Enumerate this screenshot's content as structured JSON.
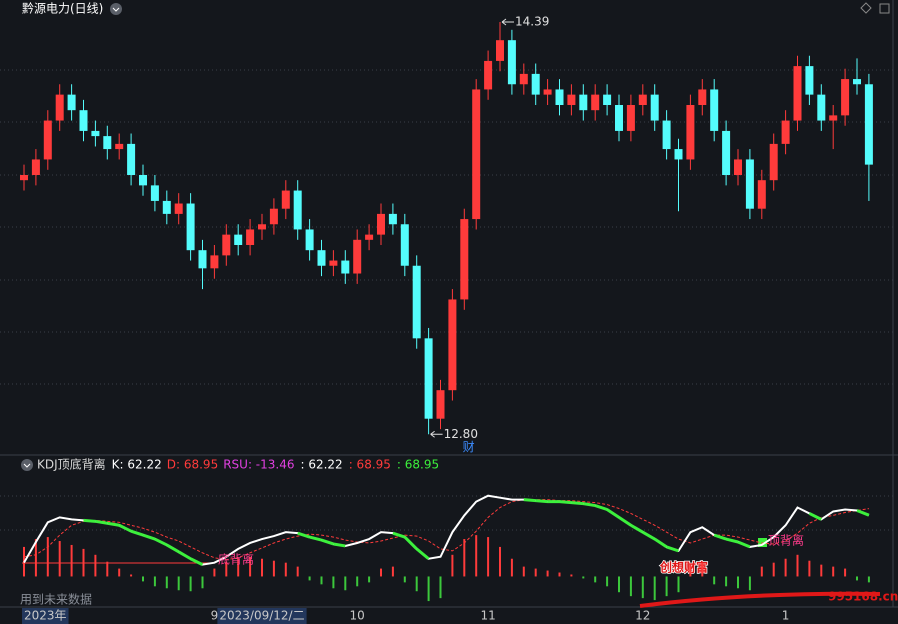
{
  "chart_data": [
    {
      "type": "candlestick",
      "title": "黔源电力(日线)",
      "categories": [
        "2023年",
        null,
        null,
        null,
        null,
        null,
        null,
        null,
        null,
        null,
        null,
        null,
        null,
        null,
        null,
        null,
        "9",
        null,
        null,
        null,
        "2023/09/12/二",
        null,
        null,
        null,
        null,
        null,
        null,
        null,
        "10",
        null,
        null,
        null,
        null,
        null,
        null,
        null,
        null,
        null,
        null,
        "11",
        null,
        null,
        null,
        null,
        null,
        null,
        null,
        null,
        null,
        null,
        null,
        null,
        "12",
        null,
        null,
        null,
        null,
        null,
        null,
        null,
        null,
        null,
        null,
        null,
        "1",
        null,
        null,
        null,
        null,
        null,
        null,
        null
      ],
      "open": [
        13.78,
        13.8,
        13.86,
        14.01,
        14.11,
        14.05,
        13.97,
        13.95,
        13.9,
        13.92,
        13.8,
        13.76,
        13.7,
        13.65,
        13.69,
        13.51,
        13.44,
        13.49,
        13.57,
        13.53,
        13.59,
        13.61,
        13.67,
        13.74,
        13.59,
        13.51,
        13.45,
        13.47,
        13.42,
        13.55,
        13.57,
        13.65,
        13.61,
        13.45,
        13.17,
        12.86,
        12.97,
        13.32,
        13.63,
        14.13,
        14.24,
        14.32,
        14.15,
        14.19,
        14.11,
        14.13,
        14.07,
        14.11,
        14.05,
        14.11,
        14.07,
        13.97,
        14.07,
        14.11,
        14.01,
        13.9,
        13.86,
        14.07,
        14.13,
        13.97,
        13.8,
        13.86,
        13.67,
        13.78,
        13.92,
        14.01,
        14.22,
        14.11,
        14.01,
        14.03,
        14.17,
        14.15
      ],
      "high": [
        13.84,
        13.9,
        14.05,
        14.15,
        14.15,
        14.09,
        14.01,
        13.99,
        13.96,
        13.96,
        13.84,
        13.8,
        13.74,
        13.73,
        13.73,
        13.55,
        13.53,
        13.61,
        13.61,
        13.63,
        13.65,
        13.71,
        13.78,
        13.78,
        13.63,
        13.55,
        13.51,
        13.51,
        13.59,
        13.61,
        13.69,
        13.69,
        13.65,
        13.49,
        13.21,
        13.01,
        13.36,
        13.67,
        14.17,
        14.28,
        14.39,
        14.36,
        14.23,
        14.23,
        14.17,
        14.17,
        14.15,
        14.15,
        14.15,
        14.15,
        14.11,
        14.11,
        14.15,
        14.15,
        14.05,
        13.94,
        14.11,
        14.17,
        14.17,
        14.01,
        13.9,
        13.9,
        13.82,
        13.96,
        14.05,
        14.26,
        14.26,
        14.15,
        14.07,
        14.21,
        14.25,
        14.19
      ],
      "low": [
        13.74,
        13.76,
        13.82,
        13.97,
        14.01,
        13.93,
        13.91,
        13.86,
        13.86,
        13.76,
        13.72,
        13.66,
        13.61,
        13.61,
        13.47,
        13.36,
        13.4,
        13.45,
        13.49,
        13.49,
        13.55,
        13.57,
        13.63,
        13.55,
        13.47,
        13.41,
        13.41,
        13.38,
        13.38,
        13.51,
        13.53,
        13.57,
        13.41,
        13.13,
        12.8,
        12.82,
        12.93,
        13.28,
        13.59,
        14.09,
        14.2,
        14.11,
        14.11,
        14.07,
        14.07,
        14.03,
        14.03,
        14.01,
        14.01,
        14.03,
        13.93,
        13.93,
        14.03,
        13.97,
        13.86,
        13.66,
        13.82,
        14.03,
        13.93,
        13.76,
        13.76,
        13.63,
        13.63,
        13.74,
        13.88,
        13.97,
        14.07,
        13.97,
        13.9,
        13.99,
        14.11,
        13.7
      ],
      "close": [
        13.8,
        13.86,
        14.01,
        14.11,
        14.05,
        13.97,
        13.95,
        13.9,
        13.92,
        13.8,
        13.76,
        13.7,
        13.65,
        13.69,
        13.51,
        13.44,
        13.49,
        13.57,
        13.53,
        13.59,
        13.61,
        13.67,
        13.74,
        13.59,
        13.51,
        13.45,
        13.47,
        13.42,
        13.55,
        13.57,
        13.65,
        13.61,
        13.45,
        13.17,
        12.86,
        12.97,
        13.32,
        13.63,
        14.13,
        14.24,
        14.32,
        14.15,
        14.19,
        14.11,
        14.13,
        14.07,
        14.11,
        14.05,
        14.11,
        14.07,
        13.97,
        14.07,
        14.11,
        14.01,
        13.9,
        13.86,
        14.07,
        14.13,
        13.97,
        13.8,
        13.86,
        13.67,
        13.78,
        13.92,
        14.01,
        14.22,
        14.11,
        14.01,
        14.03,
        14.17,
        14.15,
        13.84
      ],
      "up_color": "#ff3b3b",
      "down_color": "#54fcfc",
      "ylim": [
        12.72,
        14.475
      ],
      "annotations": [
        {
          "value": 14.39,
          "label": "14.39"
        },
        {
          "value": 12.8,
          "label": "12.80"
        }
      ],
      "marker": "财"
    },
    {
      "type": "kdj",
      "header": [
        {
          "text": "KDJ顶底背离",
          "color": "#d8d8d8"
        },
        {
          "text": "K: 62.22",
          "color": "#ffffff"
        },
        {
          "text": "D: 68.95",
          "color": "#ff3b3b"
        },
        {
          "text": "RSU: -13.46",
          "color": "#e040e0"
        },
        {
          "text": ": 62.22",
          "color": "#ffffff"
        },
        {
          "text": ": 68.95",
          "color": "#ff3b3b"
        },
        {
          "text": ": 68.95",
          "color": "#3cf03c"
        }
      ],
      "series": [
        {
          "color": "#ffffff",
          "values": [
            14,
            35,
            55,
            60,
            58,
            57,
            56,
            54,
            52,
            46,
            42,
            38,
            32,
            25,
            18,
            12,
            14,
            20,
            28,
            34,
            38,
            41,
            45,
            44,
            40,
            37,
            33,
            31,
            34,
            38,
            45,
            44,
            40,
            28,
            18,
            20,
            45,
            62,
            76,
            82,
            80,
            78,
            78,
            77,
            76,
            76,
            75,
            74,
            72,
            68,
            60,
            52,
            45,
            38,
            30,
            26,
            45,
            50,
            42,
            38,
            35,
            30,
            32,
            40,
            52,
            70,
            64,
            58,
            66,
            68,
            67,
            62.22
          ]
        },
        {
          "color": "#ff3b3b",
          "values": [
            20,
            22,
            30,
            42,
            52,
            56,
            57,
            56,
            55,
            52,
            49,
            45,
            40,
            36,
            30,
            24,
            19,
            17,
            19,
            24,
            29,
            34,
            38,
            41,
            43,
            42,
            40,
            37,
            35,
            34,
            36,
            39,
            42,
            41,
            36,
            28,
            26,
            34,
            46,
            60,
            70,
            76,
            78,
            78,
            78,
            77,
            77,
            76,
            75,
            73,
            69,
            64,
            58,
            52,
            45,
            38,
            34,
            38,
            42,
            42,
            40,
            37,
            34,
            33,
            36,
            44,
            54,
            60,
            62,
            65,
            67,
            68.95
          ]
        }
      ],
      "falling_color": "#3cf03c",
      "hist": {
        "values": [
          30,
          38,
          40,
          36,
          32,
          28,
          22,
          15,
          8,
          2,
          -5,
          -10,
          -12,
          -14,
          -15,
          -12,
          8,
          15,
          18,
          20,
          18,
          16,
          14,
          10,
          -4,
          -8,
          -12,
          -14,
          -10,
          -6,
          8,
          10,
          -6,
          -15,
          -25,
          -22,
          22,
          38,
          42,
          40,
          30,
          18,
          10,
          8,
          6,
          4,
          2,
          -2,
          -6,
          -10,
          -16,
          -20,
          -22,
          -24,
          -20,
          -16,
          12,
          14,
          -8,
          -10,
          -12,
          -14,
          10,
          14,
          18,
          22,
          16,
          12,
          10,
          8,
          -4,
          -6
        ],
        "up_color": "#ff3b3b",
        "down_color": "#3cc83c"
      },
      "ylim": [
        -30,
        100
      ],
      "annotations": [
        "底背离",
        "顶背离"
      ],
      "note": "用到未来数据"
    }
  ],
  "watermark": {
    "title": "创想财富",
    "site": "995168.cn"
  }
}
